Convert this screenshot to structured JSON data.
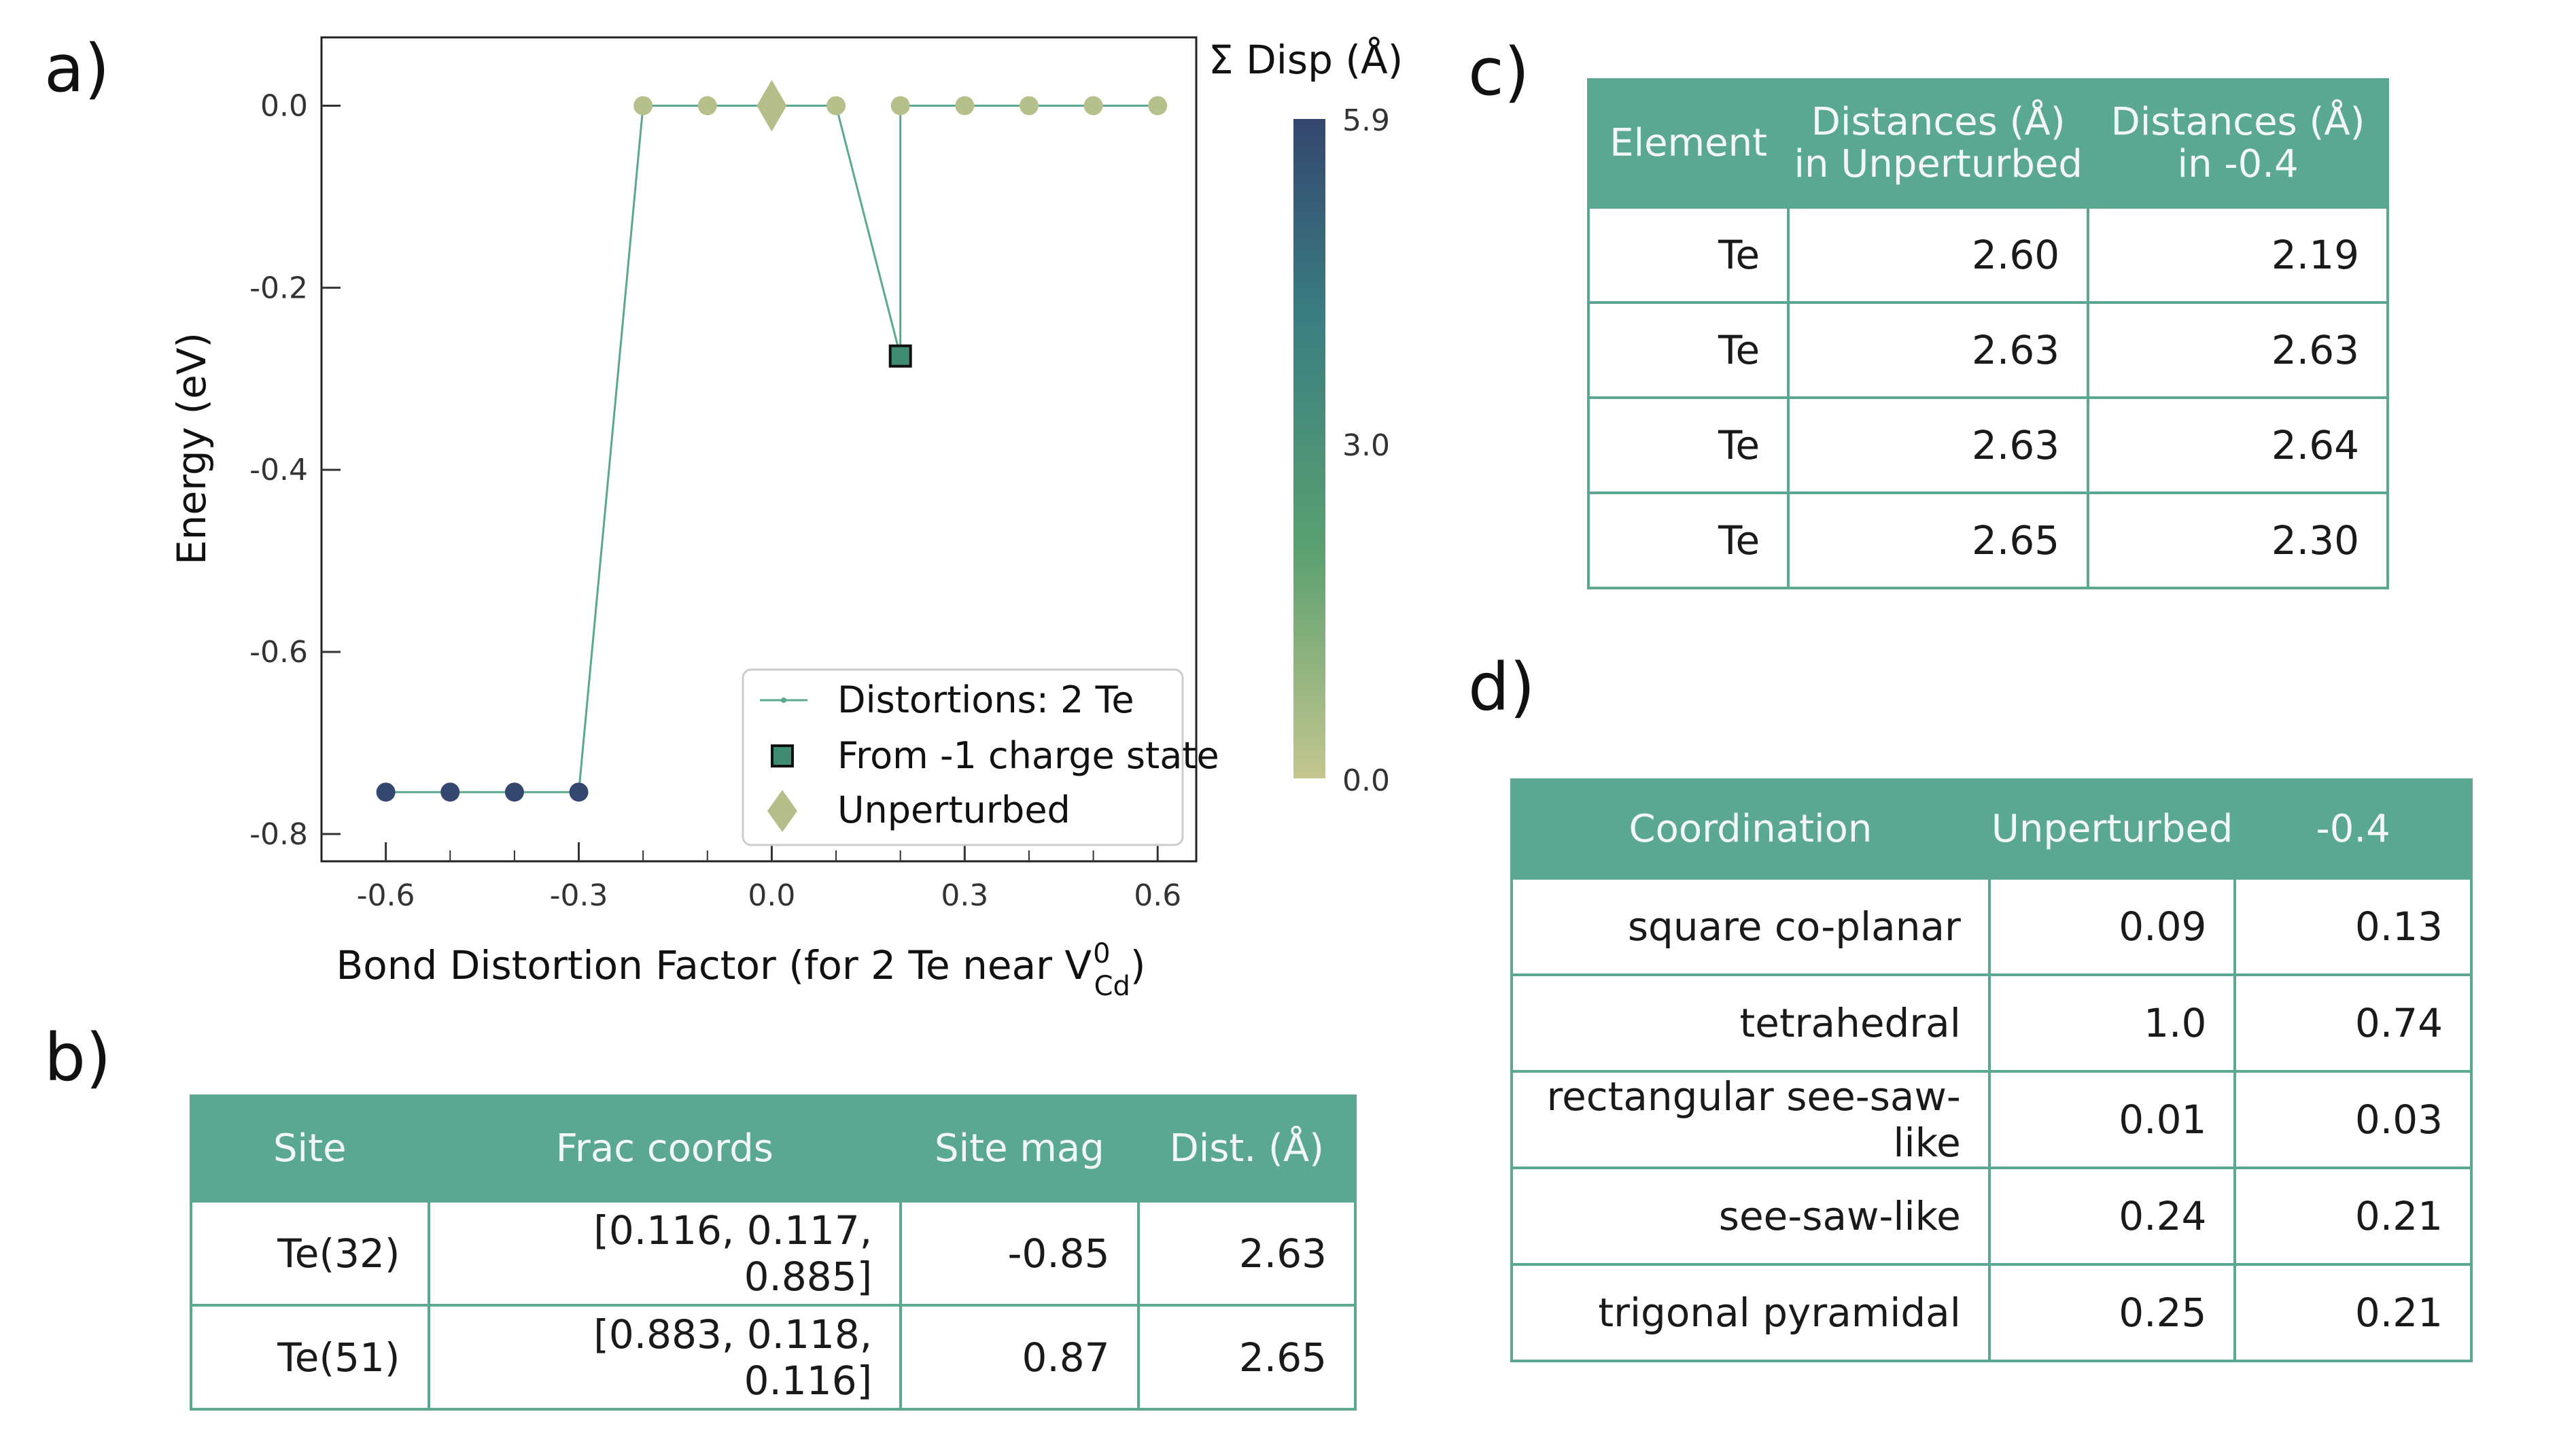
{
  "panels": {
    "a": "a)",
    "b": "b)",
    "c": "c)",
    "d": "d)"
  },
  "chart_data": {
    "type": "scatter",
    "xlabel_main": "Bond Distortion Factor (for 2 Te near V",
    "xlabel_sup": "0",
    "xlabel_sub": "Cd",
    "xlabel_end": ")",
    "ylabel": "Energy (eV)",
    "xlim": [
      -0.7,
      0.66
    ],
    "ylim": [
      -0.83,
      0.075
    ],
    "x_ticks": [
      -0.6,
      -0.3,
      0.0,
      0.3,
      0.6
    ],
    "x_tick_labels": [
      "-0.6",
      "-0.3",
      "0.0",
      "0.3",
      "0.6"
    ],
    "x_minor_ticks": [
      -0.5,
      -0.4,
      -0.2,
      -0.1,
      0.1,
      0.2,
      0.4,
      0.5
    ],
    "y_ticks": [
      0.0,
      -0.2,
      -0.4,
      -0.6,
      -0.8
    ],
    "y_tick_labels": [
      "0.0",
      "-0.2",
      "-0.4",
      "-0.6",
      "-0.8"
    ],
    "series": [
      {
        "name": "Distortions: 2 Te",
        "line_color": "#5aa891",
        "points": [
          {
            "x": -0.6,
            "y": -0.754,
            "disp": 5.9
          },
          {
            "x": -0.5,
            "y": -0.754,
            "disp": 5.9
          },
          {
            "x": -0.4,
            "y": -0.754,
            "disp": 5.9
          },
          {
            "x": -0.3,
            "y": -0.754,
            "disp": 5.9
          },
          {
            "x": -0.2,
            "y": 0.0,
            "disp": 0.3
          },
          {
            "x": -0.1,
            "y": 0.0,
            "disp": 0.3
          },
          {
            "x": 0.1,
            "y": 0.0,
            "disp": 0.3
          },
          {
            "x": 0.2,
            "y": 0.0,
            "disp": 0.3
          },
          {
            "x": 0.3,
            "y": 0.0,
            "disp": 0.3
          },
          {
            "x": 0.4,
            "y": 0.0,
            "disp": 0.3
          },
          {
            "x": 0.5,
            "y": 0.0,
            "disp": 0.3
          },
          {
            "x": 0.6,
            "y": 0.0,
            "disp": 0.3
          }
        ]
      }
    ],
    "charge_state_point": {
      "name": "From -1 charge state",
      "x": 0.2,
      "y": -0.275,
      "color": "#3f8c72"
    },
    "unperturbed_point": {
      "name": "Unperturbed",
      "x": 0.0,
      "y": 0.0,
      "color": "#b5bd88"
    },
    "colorbar": {
      "title": "Σ Disp (Å)",
      "min": 0.0,
      "max": 5.9,
      "tick_labels": [
        "5.9",
        "3.0",
        "0.0"
      ],
      "colors": [
        "#c4c68e",
        "#5aa070",
        "#3a7e82",
        "#34476e"
      ]
    },
    "legend_position": "lower-right"
  },
  "table_b": {
    "headers": [
      "Site",
      "Frac coords",
      "Site mag",
      "Dist. (Å)"
    ],
    "rows": [
      [
        "Te(32)",
        "[0.116, 0.117, 0.885]",
        "-0.85",
        "2.63"
      ],
      [
        "Te(51)",
        "[0.883, 0.118, 0.116]",
        "0.87",
        "2.65"
      ]
    ]
  },
  "table_c": {
    "headers": [
      {
        "l1": "Element",
        "l2": ""
      },
      {
        "l1": "Distances (Å)",
        "l2": "in Unperturbed"
      },
      {
        "l1": "Distances (Å)",
        "l2": "in -0.4"
      }
    ],
    "rows": [
      [
        "Te",
        "2.60",
        "2.19"
      ],
      [
        "Te",
        "2.63",
        "2.63"
      ],
      [
        "Te",
        "2.63",
        "2.64"
      ],
      [
        "Te",
        "2.65",
        "2.30"
      ]
    ]
  },
  "table_d": {
    "headers": [
      "Coordination",
      "Unperturbed",
      "-0.4"
    ],
    "rows": [
      [
        "square co-planar",
        "0.09",
        "0.13"
      ],
      [
        "tetrahedral",
        "1.0",
        "0.74"
      ],
      [
        "rectangular see-saw-like",
        "0.01",
        "0.03"
      ],
      [
        "see-saw-like",
        "0.24",
        "0.21"
      ],
      [
        "trigonal pyramidal",
        "0.25",
        "0.21"
      ]
    ]
  }
}
